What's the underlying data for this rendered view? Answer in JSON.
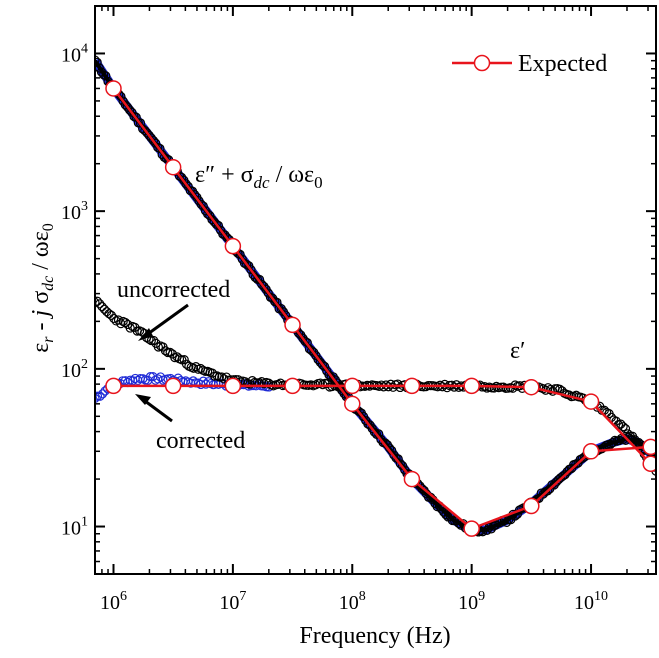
{
  "chart_data": {
    "type": "line",
    "xscale": "log",
    "yscale": "log",
    "xlim": [
      700000,
      35000000000
    ],
    "ylim": [
      5,
      20000
    ],
    "xlabel": "Frequency (Hz)",
    "ylabel": "ε_r - j σ_dc / ωε_0",
    "xticks": [
      {
        "base": "10",
        "exp": "6",
        "value": 1000000
      },
      {
        "base": "10",
        "exp": "7",
        "value": 10000000
      },
      {
        "base": "10",
        "exp": "8",
        "value": 100000000
      },
      {
        "base": "10",
        "exp": "9",
        "value": 1000000000
      },
      {
        "base": "10",
        "exp": "10",
        "value": 10000000000
      }
    ],
    "yticks": [
      {
        "base": "10",
        "exp": "1",
        "value": 10
      },
      {
        "base": "10",
        "exp": "2",
        "value": 100
      },
      {
        "base": "10",
        "exp": "3",
        "value": 1000
      },
      {
        "base": "10",
        "exp": "4",
        "value": 10000
      }
    ],
    "legend": {
      "position": "top-right",
      "entries": [
        {
          "label": "Expected",
          "color": "#e8141c"
        }
      ]
    },
    "annotations": {
      "eps2": "ε″ + σ_dc / ωε_0",
      "eps1": "ε′",
      "uncorrected": "uncorrected",
      "corrected": "corrected"
    },
    "colors": {
      "measured": "#000000",
      "corrected": "#1f2bd6",
      "expected": "#e8141c"
    },
    "series": [
      {
        "role": "measured-eps-imag-plus-dc",
        "x": [
          700000,
          1000000,
          3160000,
          10000000,
          31600000,
          100000000,
          200000000,
          316000000,
          500000000,
          700000000,
          1000000000,
          1300000000,
          2000000000,
          3160000000,
          5000000000,
          10000000000,
          15000000000,
          20000000000,
          25000000000,
          35000000000
        ],
        "y": [
          9000,
          6000,
          1900,
          600,
          190,
          60,
          32,
          20,
          14,
          11,
          9.5,
          9.5,
          11,
          14,
          19,
          30,
          34,
          36,
          34,
          27
        ]
      },
      {
        "role": "measured-eps-real-uncorrected",
        "x": [
          700000,
          1000000,
          1500000,
          2000000,
          3000000,
          5000000,
          10000000,
          20000000,
          50000000,
          100000000,
          1000000000,
          3160000000,
          5000000000,
          10000000000,
          15000000000,
          20000000000,
          25000000000,
          35000000000
        ],
        "y": [
          270,
          210,
          180,
          155,
          125,
          100,
          84,
          80,
          79,
          78,
          78,
          77,
          74,
          62,
          50,
          40,
          33,
          22
        ]
      },
      {
        "role": "measured-eps-real-corrected",
        "x": [
          700000,
          800000,
          1000000,
          1500000,
          2000000,
          3000000,
          5000000,
          10000000,
          20000000
        ],
        "y": [
          65,
          70,
          80,
          86,
          87,
          86,
          82,
          79,
          78
        ]
      },
      {
        "role": "expected-eps-imag",
        "name": "Expected",
        "x": [
          1000000,
          3160000,
          10000000,
          31600000,
          100000000,
          316000000,
          1000000000,
          3160000000,
          10000000000,
          31600000000
        ],
        "y": [
          6000,
          1900,
          600,
          190,
          60,
          20,
          9.7,
          13.5,
          30,
          32
        ]
      },
      {
        "role": "expected-eps-real",
        "name": "Expected",
        "x": [
          1000000,
          3160000,
          10000000,
          31600000,
          100000000,
          316000000,
          1000000000,
          3160000000,
          10000000000,
          31600000000
        ],
        "y": [
          78,
          78,
          78,
          78,
          78,
          78,
          78,
          76.5,
          62,
          25
        ]
      }
    ]
  }
}
